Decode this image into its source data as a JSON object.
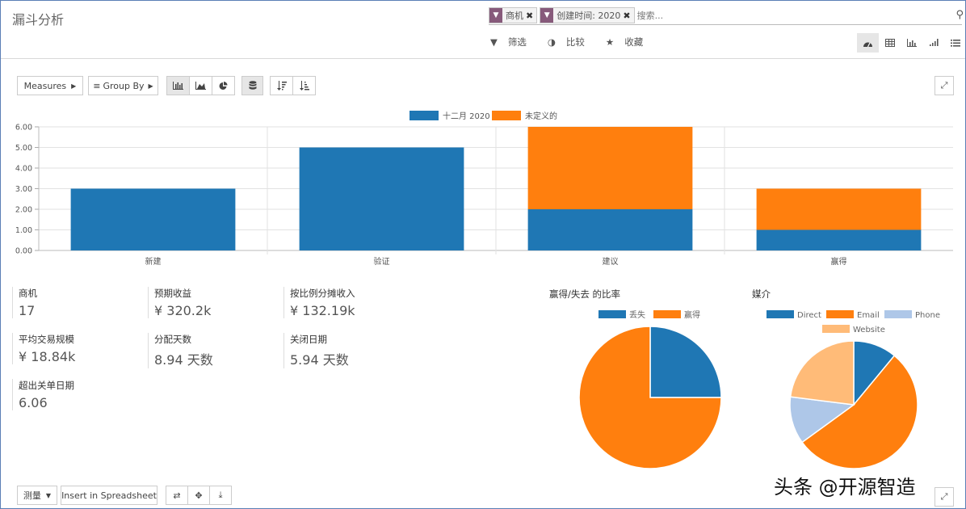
{
  "header": {
    "title": "漏斗分析",
    "facets": [
      {
        "icon": "filter-icon",
        "label": "商机"
      },
      {
        "icon": "filter-icon",
        "label": "创建时间: 2020"
      }
    ],
    "search_placeholder": "搜索...",
    "filters": {
      "filter": "筛选",
      "compare": "比较",
      "favorites": "收藏"
    }
  },
  "toolbar": {
    "measures": "Measures",
    "group_by": "Group By"
  },
  "chart_data": {
    "type": "bar",
    "stacked": true,
    "categories": [
      "新建",
      "验证",
      "建议",
      "赢得"
    ],
    "series": [
      {
        "name": "十二月 2020",
        "color": "#1f77b4",
        "values": [
          3,
          5,
          2,
          1
        ]
      },
      {
        "name": "未定义的",
        "color": "#ff7f0e",
        "values": [
          0,
          0,
          4,
          2
        ]
      }
    ],
    "ylim": [
      0,
      6
    ],
    "yticks": [
      "0.00",
      "1.00",
      "2.00",
      "3.00",
      "4.00",
      "5.00",
      "6.00"
    ],
    "legend": "top-center",
    "grid": true
  },
  "stats": [
    {
      "label": "商机",
      "value": "17"
    },
    {
      "label": "预期收益",
      "value": "¥ 320.2k"
    },
    {
      "label": "按比例分摊收入",
      "value": "¥ 132.19k"
    },
    {
      "label": "平均交易规模",
      "value": "¥ 18.84k"
    },
    {
      "label": "分配天数",
      "value": "8.94 天数"
    },
    {
      "label": "关闭日期",
      "value": "5.94 天数"
    },
    {
      "label": "超出关单日期",
      "value": "6.06"
    }
  ],
  "pies": [
    {
      "title": "赢得/失去 的比率",
      "slices": [
        {
          "name": "丢失",
          "value": 0.25,
          "color": "#1f77b4"
        },
        {
          "name": "赢得",
          "value": 0.75,
          "color": "#ff7f0e"
        }
      ]
    },
    {
      "title": "媒介",
      "slices": [
        {
          "name": "Direct",
          "value": 0.11,
          "color": "#1f77b4"
        },
        {
          "name": "Email",
          "value": 0.54,
          "color": "#ff7f0e"
        },
        {
          "name": "Phone",
          "value": 0.12,
          "color": "#aec7e8"
        },
        {
          "name": "Website",
          "value": 0.23,
          "color": "#ffbb78"
        }
      ]
    }
  ],
  "bottom": {
    "measure": "测量",
    "insert": "Insert in Spreadsheet"
  },
  "watermark": "头条 @开源智造"
}
